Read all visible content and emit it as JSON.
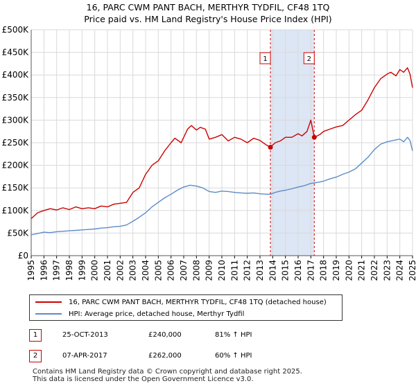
{
  "title_line1": "16, PARC CWM PANT BACH, MERTHYR TYDFIL, CF48 1TQ",
  "title_line2": "Price paid vs. HM Land Registry's House Price Index (HPI)",
  "chart_data": {
    "type": "line",
    "title": "16, PARC CWM PANT BACH, MERTHYR TYDFIL, CF48 1TQ — Price paid vs. HM Land Registry's House Price Index (HPI)",
    "xlabel": "",
    "ylabel": "",
    "xlim": [
      1995,
      2025
    ],
    "ylim": [
      0,
      500000
    ],
    "y_ticks": [
      {
        "value": 0,
        "label": "£0"
      },
      {
        "value": 50000,
        "label": "£50K"
      },
      {
        "value": 100000,
        "label": "£100K"
      },
      {
        "value": 150000,
        "label": "£150K"
      },
      {
        "value": 200000,
        "label": "£200K"
      },
      {
        "value": 250000,
        "label": "£250K"
      },
      {
        "value": 300000,
        "label": "£300K"
      },
      {
        "value": 350000,
        "label": "£350K"
      },
      {
        "value": 400000,
        "label": "£400K"
      },
      {
        "value": 450000,
        "label": "£450K"
      },
      {
        "value": 500000,
        "label": "£500K"
      }
    ],
    "x_ticks": [
      "1995",
      "1996",
      "1997",
      "1998",
      "1999",
      "2000",
      "2001",
      "2002",
      "2003",
      "2004",
      "2005",
      "2006",
      "2007",
      "2008",
      "2009",
      "2010",
      "2011",
      "2012",
      "2013",
      "2014",
      "2015",
      "2016",
      "2017",
      "2018",
      "2019",
      "2020",
      "2021",
      "2022",
      "2023",
      "2024",
      "2025"
    ],
    "grid": true,
    "shaded_region": {
      "x_start": 2013.82,
      "x_end": 2017.27,
      "color": "#dde6f5"
    },
    "series": [
      {
        "name": "16, PARC CWM PANT BACH, MERTHYR TYDFIL, CF48 1TQ (detached house)",
        "color": "#cc0000",
        "points": [
          [
            1995.0,
            82000
          ],
          [
            1995.5,
            95000
          ],
          [
            1996.0,
            100000
          ],
          [
            1996.5,
            104000
          ],
          [
            1997.0,
            101000
          ],
          [
            1997.5,
            106000
          ],
          [
            1998.0,
            102000
          ],
          [
            1998.5,
            108000
          ],
          [
            1999.0,
            104000
          ],
          [
            1999.5,
            106000
          ],
          [
            2000.0,
            104000
          ],
          [
            2000.5,
            110000
          ],
          [
            2001.0,
            108000
          ],
          [
            2001.5,
            114000
          ],
          [
            2002.0,
            116000
          ],
          [
            2002.5,
            118000
          ],
          [
            2003.0,
            140000
          ],
          [
            2003.5,
            150000
          ],
          [
            2004.0,
            180000
          ],
          [
            2004.5,
            200000
          ],
          [
            2005.0,
            210000
          ],
          [
            2005.5,
            232000
          ],
          [
            2006.0,
            250000
          ],
          [
            2006.3,
            260000
          ],
          [
            2006.8,
            250000
          ],
          [
            2007.0,
            262000
          ],
          [
            2007.3,
            280000
          ],
          [
            2007.6,
            288000
          ],
          [
            2008.0,
            278000
          ],
          [
            2008.3,
            284000
          ],
          [
            2008.7,
            280000
          ],
          [
            2009.0,
            258000
          ],
          [
            2009.5,
            262000
          ],
          [
            2010.0,
            268000
          ],
          [
            2010.5,
            254000
          ],
          [
            2011.0,
            262000
          ],
          [
            2011.5,
            258000
          ],
          [
            2012.0,
            250000
          ],
          [
            2012.5,
            260000
          ],
          [
            2013.0,
            255000
          ],
          [
            2013.5,
            245000
          ],
          [
            2013.82,
            240000
          ],
          [
            2014.2,
            250000
          ],
          [
            2014.6,
            254000
          ],
          [
            2015.0,
            262000
          ],
          [
            2015.5,
            262000
          ],
          [
            2016.0,
            270000
          ],
          [
            2016.3,
            265000
          ],
          [
            2016.7,
            275000
          ],
          [
            2017.0,
            300000
          ],
          [
            2017.27,
            262000
          ],
          [
            2017.7,
            268000
          ],
          [
            2018.0,
            275000
          ],
          [
            2018.5,
            280000
          ],
          [
            2019.0,
            285000
          ],
          [
            2019.5,
            288000
          ],
          [
            2020.0,
            300000
          ],
          [
            2020.5,
            312000
          ],
          [
            2021.0,
            322000
          ],
          [
            2021.5,
            345000
          ],
          [
            2022.0,
            372000
          ],
          [
            2022.5,
            392000
          ],
          [
            2023.0,
            402000
          ],
          [
            2023.3,
            406000
          ],
          [
            2023.7,
            398000
          ],
          [
            2024.0,
            412000
          ],
          [
            2024.3,
            406000
          ],
          [
            2024.6,
            416000
          ],
          [
            2024.8,
            402000
          ],
          [
            2025.0,
            372000
          ]
        ]
      },
      {
        "name": "HPI: Average price, detached house, Merthyr Tydfil",
        "color": "#5b8cc8",
        "points": [
          [
            1995.0,
            46000
          ],
          [
            1995.5,
            49000
          ],
          [
            1996.0,
            52000
          ],
          [
            1996.5,
            51000
          ],
          [
            1997.0,
            53000
          ],
          [
            1997.5,
            54000
          ],
          [
            1998.0,
            55000
          ],
          [
            1998.5,
            56000
          ],
          [
            1999.0,
            57000
          ],
          [
            1999.5,
            58000
          ],
          [
            2000.0,
            59000
          ],
          [
            2000.5,
            61000
          ],
          [
            2001.0,
            62000
          ],
          [
            2001.5,
            64000
          ],
          [
            2002.0,
            65000
          ],
          [
            2002.5,
            68000
          ],
          [
            2003.0,
            76000
          ],
          [
            2003.5,
            85000
          ],
          [
            2004.0,
            95000
          ],
          [
            2004.5,
            108000
          ],
          [
            2005.0,
            118000
          ],
          [
            2005.5,
            128000
          ],
          [
            2006.0,
            136000
          ],
          [
            2006.5,
            145000
          ],
          [
            2007.0,
            152000
          ],
          [
            2007.5,
            156000
          ],
          [
            2008.0,
            154000
          ],
          [
            2008.5,
            150000
          ],
          [
            2009.0,
            142000
          ],
          [
            2009.5,
            140000
          ],
          [
            2010.0,
            143000
          ],
          [
            2010.5,
            142000
          ],
          [
            2011.0,
            140000
          ],
          [
            2011.5,
            139000
          ],
          [
            2012.0,
            138000
          ],
          [
            2012.5,
            139000
          ],
          [
            2013.0,
            137000
          ],
          [
            2013.5,
            136000
          ],
          [
            2013.82,
            136000
          ],
          [
            2014.2,
            140000
          ],
          [
            2014.6,
            143000
          ],
          [
            2015.0,
            145000
          ],
          [
            2015.5,
            148000
          ],
          [
            2016.0,
            152000
          ],
          [
            2016.5,
            155000
          ],
          [
            2017.0,
            160000
          ],
          [
            2017.27,
            161000
          ],
          [
            2017.7,
            163000
          ],
          [
            2018.0,
            165000
          ],
          [
            2018.5,
            170000
          ],
          [
            2019.0,
            174000
          ],
          [
            2019.5,
            180000
          ],
          [
            2020.0,
            185000
          ],
          [
            2020.5,
            192000
          ],
          [
            2021.0,
            205000
          ],
          [
            2021.5,
            218000
          ],
          [
            2022.0,
            235000
          ],
          [
            2022.5,
            247000
          ],
          [
            2023.0,
            252000
          ],
          [
            2023.5,
            255000
          ],
          [
            2024.0,
            258000
          ],
          [
            2024.3,
            252000
          ],
          [
            2024.6,
            262000
          ],
          [
            2024.8,
            255000
          ],
          [
            2025.0,
            232000
          ]
        ]
      }
    ],
    "annotations": [
      {
        "id": "1",
        "x": 2013.82,
        "y": 240000
      },
      {
        "id": "2",
        "x": 2017.27,
        "y": 262000
      }
    ]
  },
  "legend": [
    {
      "label": "16, PARC CWM PANT BACH, MERTHYR TYDFIL, CF48 1TQ (detached house)",
      "color": "#cc0000"
    },
    {
      "label": "HPI: Average price, detached house, Merthyr Tydfil",
      "color": "#5b8cc8"
    }
  ],
  "sales": [
    {
      "id": "1",
      "date": "25-OCT-2013",
      "price": "£240,000",
      "hpi": "81% ↑ HPI"
    },
    {
      "id": "2",
      "date": "07-APR-2017",
      "price": "£262,000",
      "hpi": "60% ↑ HPI"
    }
  ],
  "footer_line1": "Contains HM Land Registry data © Crown copyright and database right 2025.",
  "footer_line2": "This data is licensed under the Open Government Licence v3.0."
}
